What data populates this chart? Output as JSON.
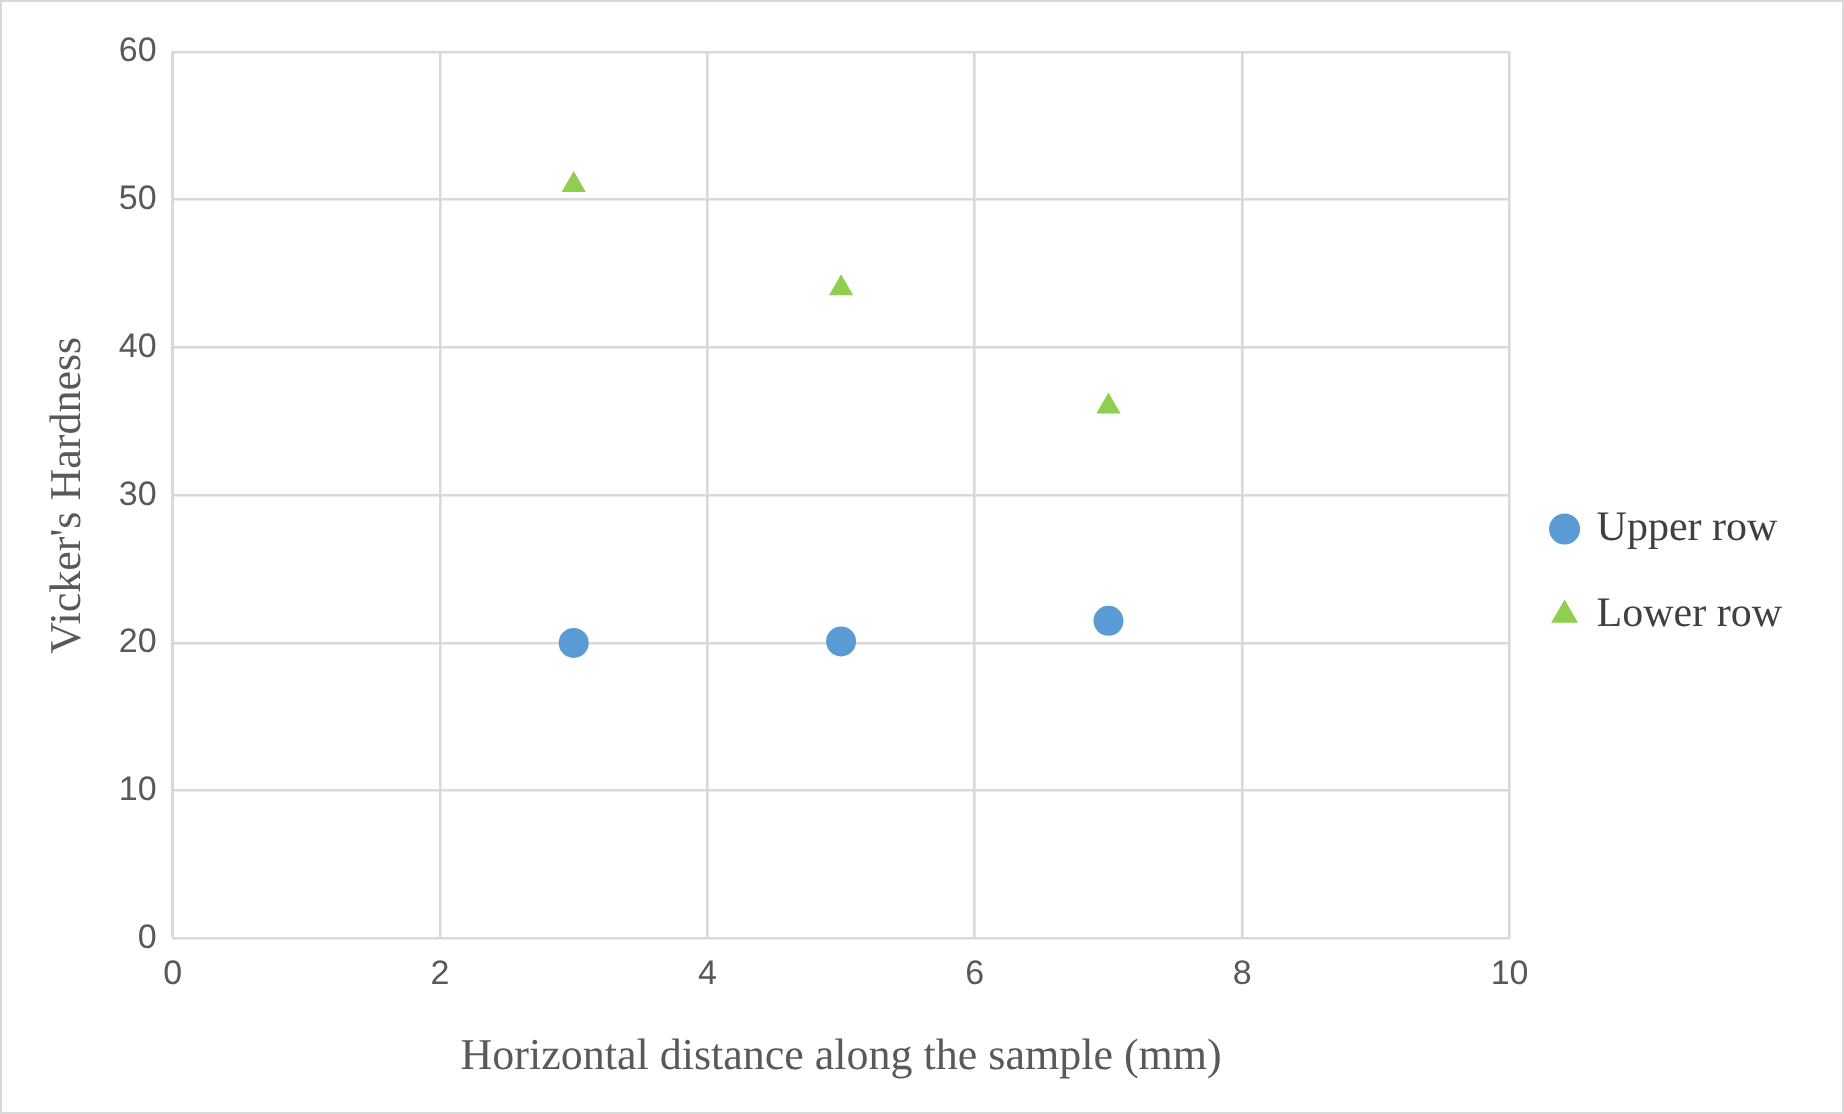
{
  "chart_data": {
    "type": "scatter",
    "xlabel": "Horizontal distance along the sample (mm)",
    "ylabel": "Vicker's Hardness",
    "x": [
      3,
      5,
      7
    ],
    "series": [
      {
        "name": "Upper row",
        "color": "#5b9bd5",
        "marker": "circle",
        "values": [
          20,
          20.1,
          21.5
        ]
      },
      {
        "name": "Lower row",
        "color": "#8fce4f",
        "marker": "triangle",
        "values": [
          51,
          44,
          36
        ]
      }
    ],
    "xlim": [
      0,
      10
    ],
    "xticks": [
      0,
      2,
      4,
      6,
      8,
      10
    ],
    "ylim": [
      0,
      60
    ],
    "yticks": [
      0,
      10,
      20,
      30,
      40,
      50,
      60
    ],
    "grid": true,
    "legend": "right"
  }
}
